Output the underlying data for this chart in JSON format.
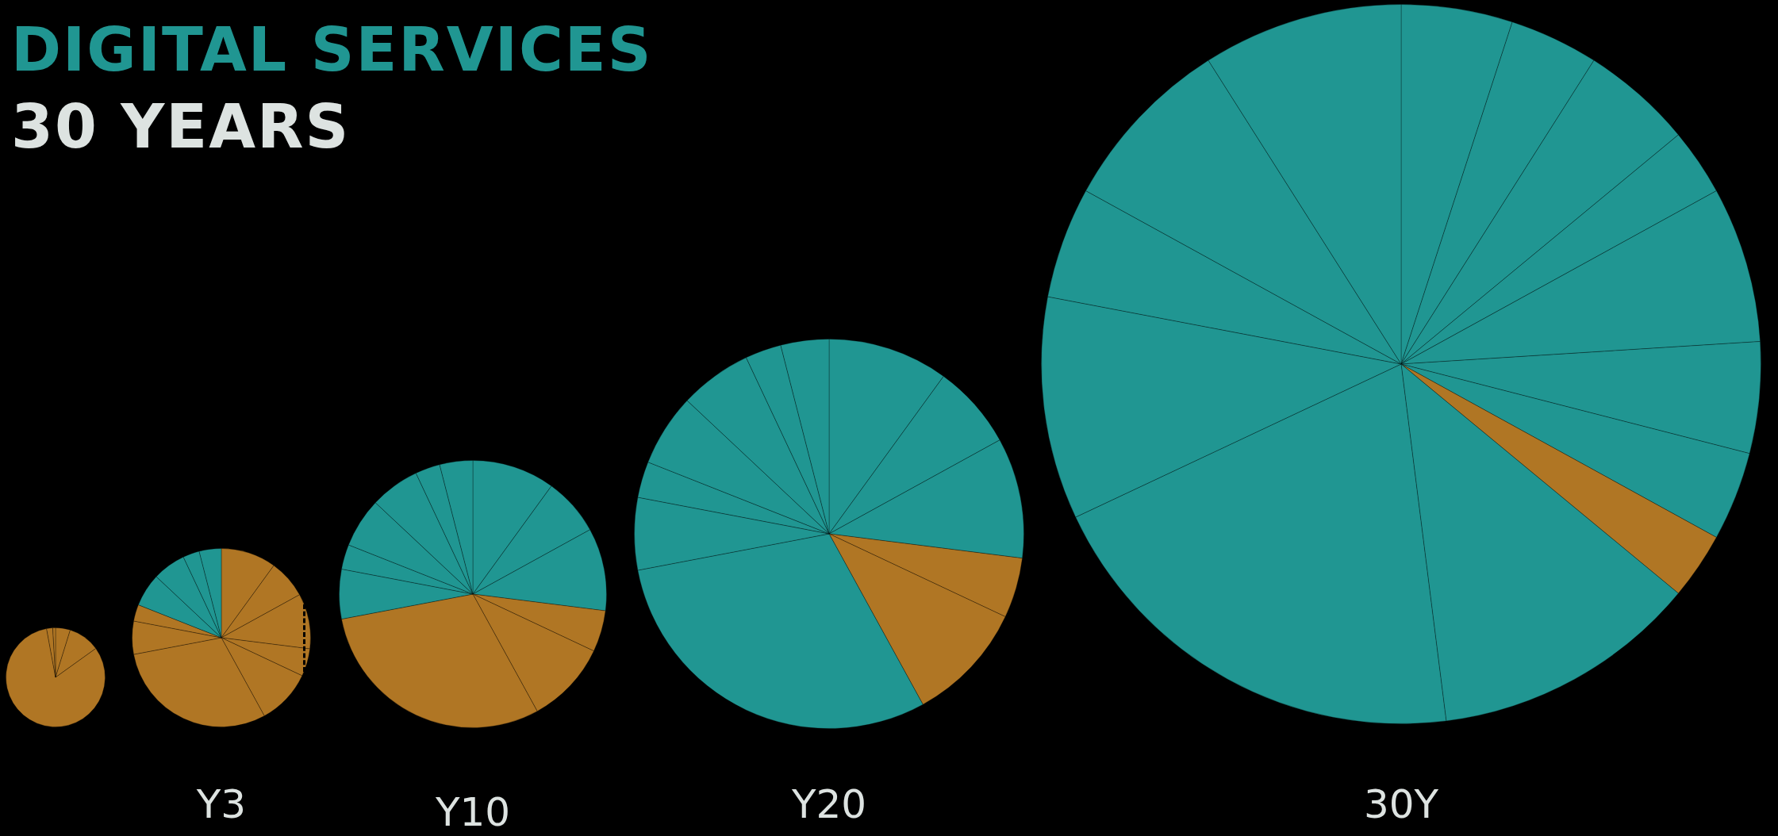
{
  "chart_data": [
    {
      "type": "pie",
      "title": "DIGITAL SERVICES",
      "subtitle": "30 YEARS",
      "categories": [
        null,
        null,
        null,
        null,
        null
      ],
      "values": [
        4.8,
        10.3,
        82.0,
        2.0,
        0.9
      ],
      "colors": [
        "#b07624",
        "#b07624",
        "#b07624",
        "#b07624",
        "#b07624"
      ],
      "legend": false
    },
    {
      "type": "pie",
      "title": "Y3",
      "categories": [
        null,
        null,
        null,
        null,
        null,
        null,
        null,
        null,
        null,
        null,
        null,
        null
      ],
      "values": [
        10,
        7,
        10,
        5,
        10,
        30,
        6,
        3,
        6,
        6,
        3,
        4
      ],
      "colors": [
        "#b07624",
        "#b07624",
        "#b07624",
        "#b07624",
        "#b07624",
        "#b07624",
        "#b07624",
        "#b07624",
        "#209692",
        "#209692",
        "#209692",
        "#209692"
      ],
      "legend": false
    },
    {
      "type": "pie",
      "title": "Y10",
      "categories": [
        null,
        null,
        null,
        null,
        null,
        null,
        null,
        null,
        null,
        null,
        null,
        null
      ],
      "values": [
        10,
        7,
        10,
        5,
        10,
        30,
        6,
        3,
        6,
        6,
        3,
        4
      ],
      "colors": [
        "#209692",
        "#209692",
        "#209692",
        "#b07624",
        "#b07624",
        "#b07624",
        "#209692",
        "#209692",
        "#209692",
        "#209692",
        "#209692",
        "#209692"
      ],
      "legend": false
    },
    {
      "type": "pie",
      "title": "Y20",
      "categories": [
        null,
        null,
        null,
        null,
        null,
        null,
        null,
        null,
        null,
        null,
        null,
        null
      ],
      "values": [
        10,
        7,
        10,
        5,
        10,
        30,
        6,
        3,
        6,
        6,
        3,
        4
      ],
      "colors": [
        "#209692",
        "#209692",
        "#209692",
        "#b07624",
        "#b07624",
        "#209692",
        "#209692",
        "#209692",
        "#209692",
        "#209692",
        "#209692",
        "#209692"
      ],
      "legend": false
    },
    {
      "type": "pie",
      "title": "30Y",
      "categories": [
        null,
        null,
        null,
        null,
        null,
        null,
        null,
        null,
        null,
        null,
        null,
        null,
        null,
        null
      ],
      "values": [
        5,
        4,
        5,
        3,
        7,
        5,
        4,
        3,
        12,
        20,
        10,
        5,
        8,
        9
      ],
      "colors": [
        "#209692",
        "#209692",
        "#209692",
        "#209692",
        "#209692",
        "#209692",
        "#209692",
        "#b07624",
        "#209692",
        "#209692",
        "#209692",
        "#209692",
        "#209692",
        "#209692"
      ],
      "legend": false
    }
  ]
}
